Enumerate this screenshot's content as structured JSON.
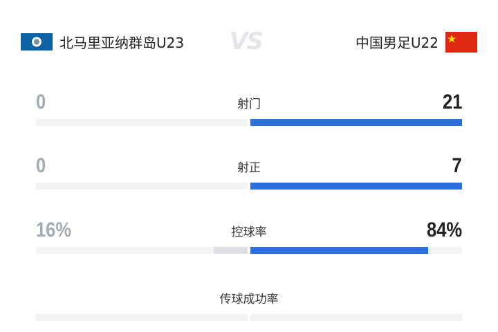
{
  "header": {
    "home_team": "北马里亚纳群岛U23",
    "vs": "VS",
    "away_team": "中国男足U22"
  },
  "stats": [
    {
      "label": "射门",
      "home": 0,
      "away": 21
    },
    {
      "label": "射正",
      "home": 0,
      "away": 7
    },
    {
      "label": "控球率",
      "home": 16,
      "home_label": "16%",
      "away": 84,
      "away_label": "84%"
    },
    {
      "label": "传球成功率"
    }
  ]
}
